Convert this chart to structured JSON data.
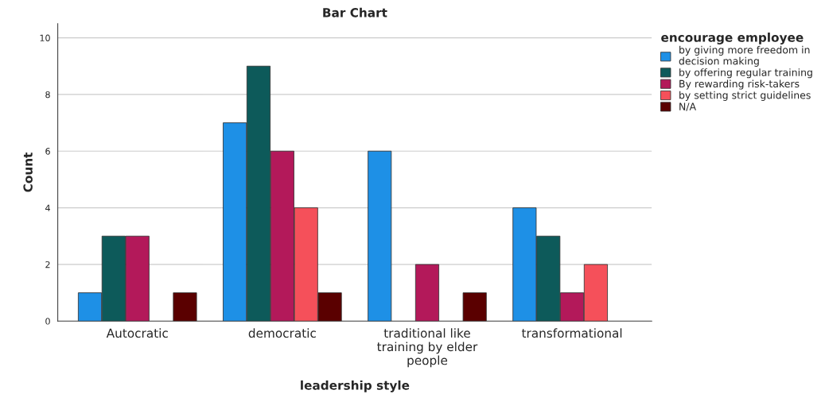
{
  "chart_data": {
    "type": "bar",
    "title": "Bar Chart",
    "xlabel": "leadership style",
    "ylabel": "Count",
    "legend_title": "encourage employee",
    "categories": [
      "Autocratic",
      "democratic",
      "traditional like\ntraining by elder\npeople",
      "transformational"
    ],
    "series": [
      {
        "name": "by giving more freedom in\ndecision making",
        "color": "#1e90e6",
        "values": [
          1,
          7,
          6,
          4
        ]
      },
      {
        "name": "by offering regular training",
        "color": "#0d5a5a",
        "values": [
          3,
          9,
          null,
          3
        ]
      },
      {
        "name": "By rewarding risk-takers",
        "color": "#b3195a",
        "values": [
          3,
          6,
          2,
          1
        ]
      },
      {
        "name": "by setting strict guidelines",
        "color": "#f5505a",
        "values": [
          null,
          4,
          null,
          2
        ]
      },
      {
        "name": "N/A",
        "color": "#5a0000",
        "values": [
          1,
          1,
          1,
          null
        ]
      }
    ],
    "ylim": [
      0,
      10.5
    ],
    "yticks": [
      0,
      2,
      4,
      6,
      8,
      10
    ],
    "grid": "y",
    "legend": "top right"
  }
}
